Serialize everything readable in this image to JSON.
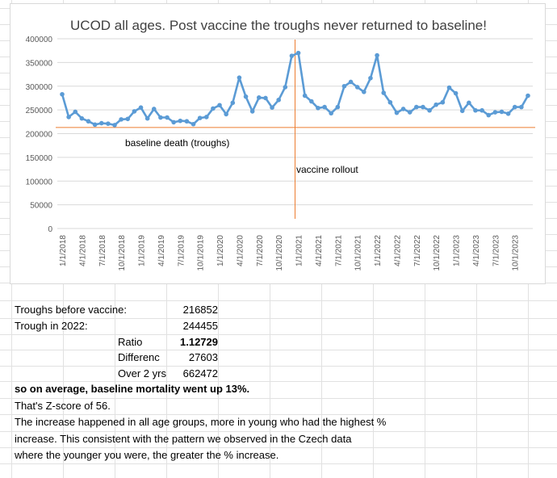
{
  "chart_data": {
    "type": "line",
    "title": "UCOD all ages. Post vaccine the troughs never returned to baseline!",
    "xlabel": "",
    "ylabel": "",
    "ylim": [
      0,
      400000
    ],
    "yticks": [
      0,
      50000,
      100000,
      150000,
      200000,
      250000,
      300000,
      350000,
      400000
    ],
    "ytick_labels": [
      "0",
      "50000",
      "100000",
      "150000",
      "200000",
      "250000",
      "300000",
      "350000",
      "400000"
    ],
    "grid": true,
    "tick_labels": [
      "1/1/2018",
      "4/1/2018",
      "7/1/2018",
      "10/1/2018",
      "1/1/2019",
      "4/1/2019",
      "7/1/2019",
      "10/1/2019",
      "1/1/2020",
      "4/1/2020",
      "7/1/2020",
      "10/1/2020",
      "1/1/2021",
      "4/1/2021",
      "7/1/2021",
      "10/1/2021",
      "1/1/2022",
      "4/1/2022",
      "7/1/2022",
      "10/1/2022",
      "1/1/2023",
      "4/1/2023",
      "7/1/2023",
      "10/1/2023"
    ],
    "series": [
      {
        "name": "UCOD all ages",
        "color": "#5b9bd5",
        "values": [
          283000,
          235000,
          246000,
          232000,
          226000,
          219000,
          222000,
          221000,
          218000,
          230000,
          231000,
          247000,
          255000,
          232000,
          252000,
          234000,
          234000,
          224000,
          227000,
          226000,
          220000,
          233000,
          235000,
          253000,
          260000,
          241000,
          265000,
          318000,
          278000,
          247000,
          276000,
          275000,
          255000,
          271000,
          298000,
          364000,
          370000,
          280000,
          268000,
          254000,
          256000,
          243000,
          256000,
          300000,
          309000,
          298000,
          288000,
          317000,
          365000,
          286000,
          266000,
          244000,
          252000,
          245000,
          256000,
          256000,
          249000,
          261000,
          266000,
          297000,
          285000,
          248000,
          265000,
          249000,
          249000,
          239000,
          245000,
          246000,
          242000,
          256000,
          256000,
          280000
        ]
      }
    ],
    "reference_lines": [
      {
        "name": "baseline death (troughs)",
        "orientation": "horizontal",
        "value": 213000,
        "color": "#ed7d31"
      },
      {
        "name": "vaccine rollout",
        "orientation": "vertical",
        "at_index": 35.5,
        "color": "#ed7d31"
      }
    ],
    "annotations": {
      "baseline": "baseline death (troughs)",
      "vaccine": "vaccine rollout"
    }
  },
  "sheet": {
    "troughs_label": "Troughs before vaccine:",
    "troughs_value": "216852",
    "trough2022_label": "Trough in 2022:",
    "trough2022_value": "244455",
    "ratio_label": "Ratio",
    "ratio_value": "1.12729",
    "difference_label": "Differenc",
    "difference_value": "27603",
    "over2_label": "Over 2 yrs",
    "over2_value": "662472",
    "line1": "so on average, baseline mortality went up 13%.",
    "line2": "That's Z-score of 56.",
    "line3": "The increase happened in all age groups, more in young who had the highest %",
    "line4": "increase. This consistent with the pattern we observed in the Czech data",
    "line5": "where the younger you were, the greater the % increase."
  }
}
